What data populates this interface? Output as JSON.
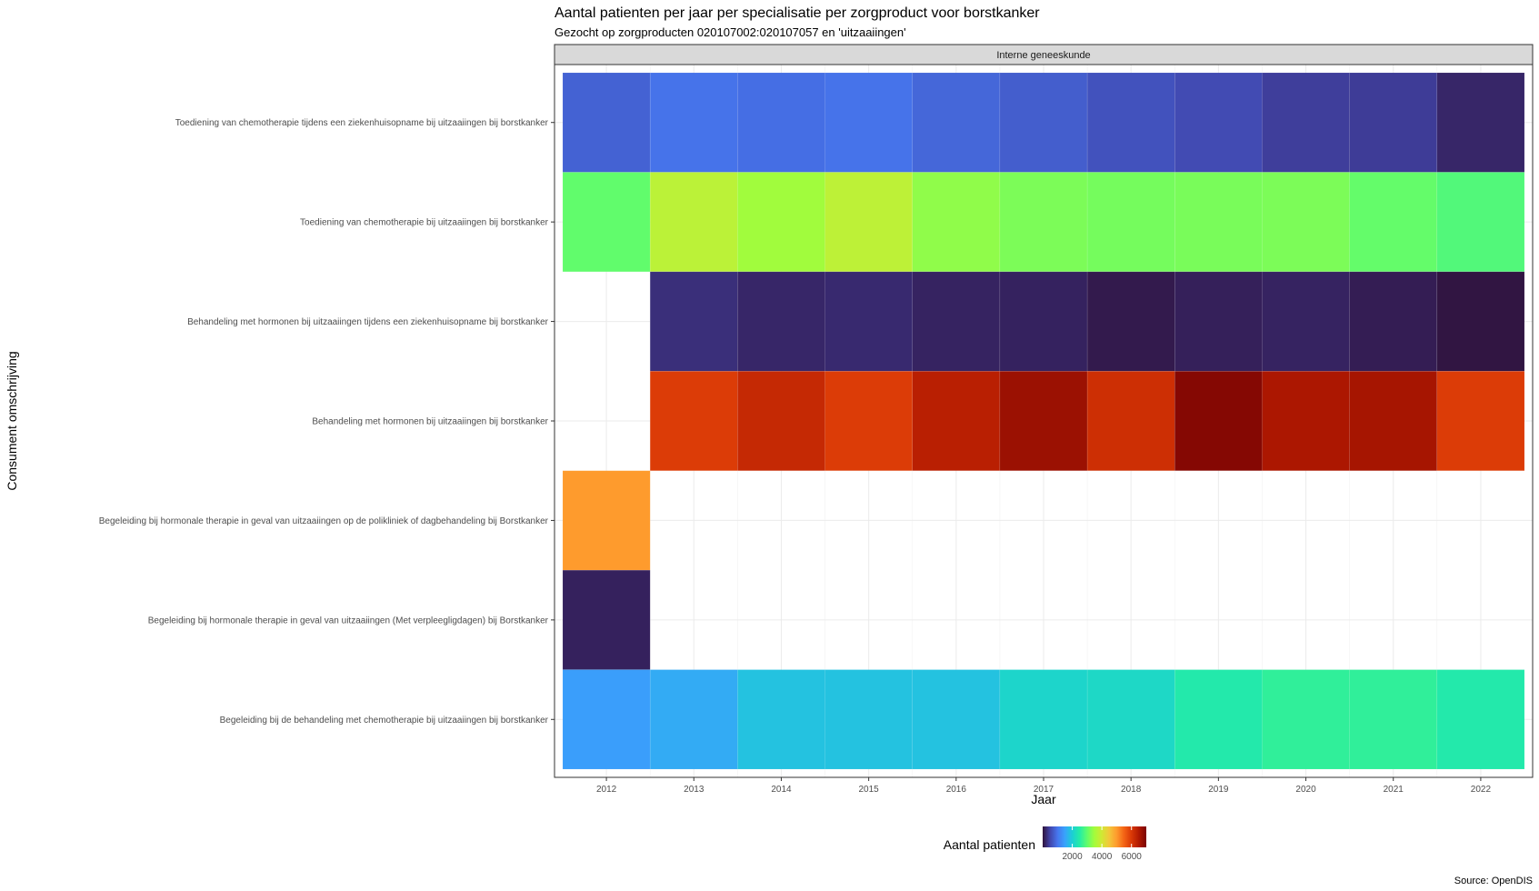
{
  "chart_data": {
    "type": "heatmap",
    "title": "Aantal patienten per jaar per specialisatie per zorgproduct voor borstkanker",
    "subtitle": "Gezocht op zorgproducten 020107002:020107057 en 'uitzaaiingen'",
    "facet": "Interne geneeskunde",
    "xlabel": "Jaar",
    "ylabel": "Consument omschrijving",
    "caption": "Source: OpenDIS",
    "x": [
      "2012",
      "2013",
      "2014",
      "2015",
      "2016",
      "2017",
      "2018",
      "2019",
      "2020",
      "2021",
      "2022"
    ],
    "y": [
      "Toediening van chemotherapie tijdens een ziekenhuisopname bij uitzaaiingen bij borstkanker",
      "Toediening van chemotherapie bij uitzaaiingen bij borstkanker",
      "Behandeling met hormonen bij uitzaaiingen tijdens een ziekenhuisopname bij borstkanker",
      "Behandeling met hormonen bij uitzaaiingen bij borstkanker",
      "Begeleiding bij hormonale therapie in geval van uitzaaiingen op de polikliniek of dagbehandeling bij Borstkanker",
      "Begeleiding bij hormonale therapie in geval van uitzaaiingen (Met verpleegligdagen) bij Borstkanker",
      "Begeleiding bij de behandeling met chemotherapie bij uitzaaiingen bij borstkanker"
    ],
    "values": [
      [
        800,
        980,
        930,
        980,
        850,
        760,
        640,
        560,
        430,
        410,
        200
      ],
      [
        3000,
        3750,
        3480,
        3780,
        3350,
        3200,
        3150,
        3180,
        3200,
        3020,
        2880
      ],
      null,
      null,
      null,
      null,
      null
    ],
    "values_rows_3_to_7": {
      "Behandeling met hormonen bij uitzaaiingen tijdens een ziekenhuisopname bij borstkanker": [
        null,
        280,
        200,
        230,
        170,
        160,
        80,
        140,
        170,
        110,
        30
      ],
      "Behandeling met hormonen bij uitzaaiingen bij borstkanker": [
        null,
        5950,
        6250,
        5950,
        6400,
        6700,
        6150,
        6900,
        6550,
        6600,
        5950
      ],
      "Begeleiding bij hormonale therapie in geval van uitzaaiingen op de polikliniek of dagbehandeling bij Borstkanker": [
        5000,
        null,
        null,
        null,
        null,
        null,
        null,
        null,
        null,
        null,
        null
      ],
      "Begeleiding bij hormonale therapie in geval van uitzaaiingen (Met verpleegligdagen) bij Borstkanker": [
        150,
        null,
        null,
        null,
        null,
        null,
        null,
        null,
        null,
        null,
        null
      ],
      "Begeleiding bij de behandeling met chemotherapie bij uitzaaiingen bij borstkanker": [
        1450,
        1600,
        1850,
        1850,
        1850,
        2100,
        2150,
        2450,
        2600,
        2600,
        2450
      ]
    },
    "legend": {
      "title": "Aantal patienten",
      "ticks": [
        2000,
        4000,
        6000
      ],
      "range": [
        0,
        7000
      ],
      "palette": "turbo"
    },
    "grid": true,
    "legend_position": "bottom"
  }
}
